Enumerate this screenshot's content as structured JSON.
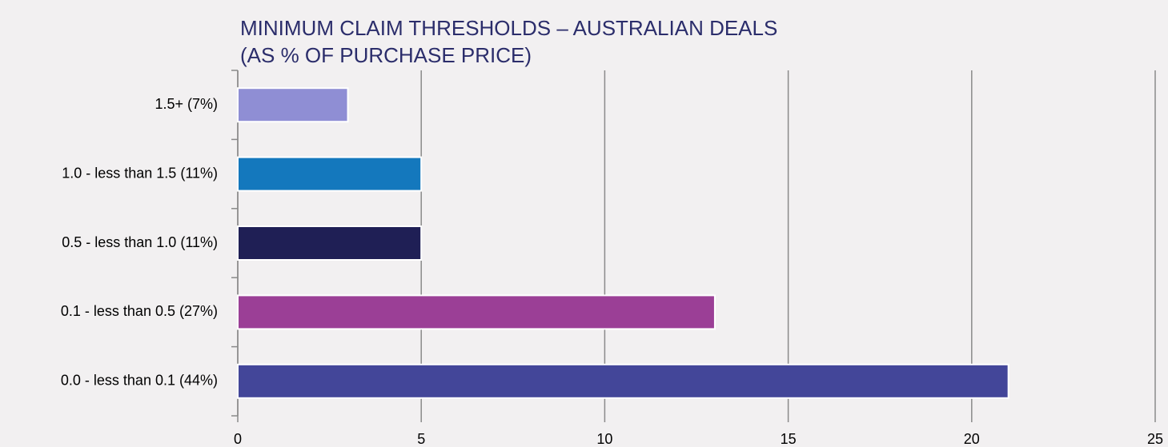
{
  "chart_data": {
    "type": "barh",
    "title": [
      "MINIMUM CLAIM THRESHOLDS – AUSTRALIAN DEALS",
      "(AS % OF PURCHASE PRICE)"
    ],
    "categories": [
      "1.5+ (7%)",
      "1.0 - less than 1.5 (11%)",
      "0.5 - less than 1.0 (11%)",
      "0.1 - less than 0.5 (27%)",
      "0.0 - less than 0.1 (44%)"
    ],
    "values": [
      3,
      5,
      5,
      13,
      21
    ],
    "colors": [
      "#8f8ed4",
      "#1478bd",
      "#1f1f55",
      "#9b3f96",
      "#434699"
    ],
    "xlim": [
      0,
      25
    ],
    "xticks": [
      0,
      5,
      10,
      15,
      20,
      25
    ],
    "grid": true
  }
}
